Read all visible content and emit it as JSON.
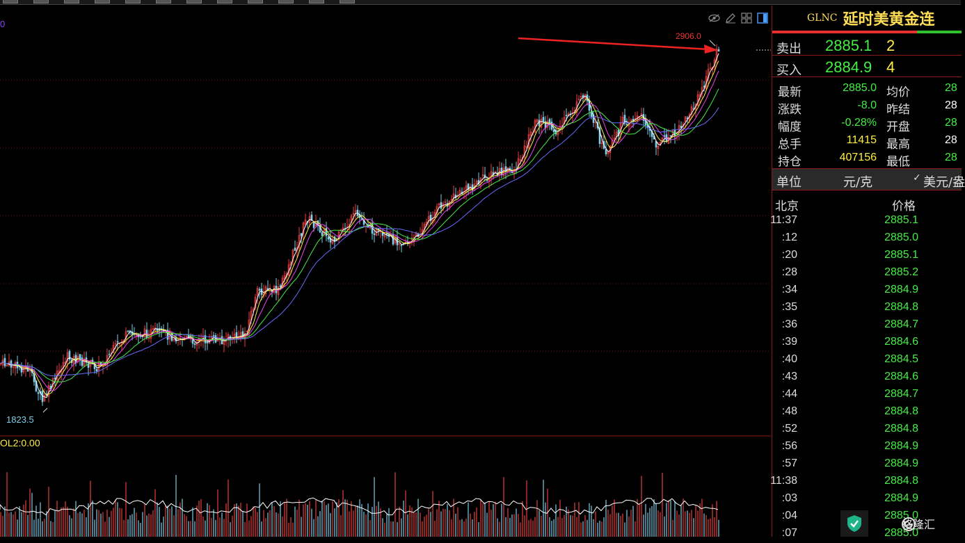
{
  "chart": {
    "top_left_value": "0",
    "peak_label": "2906.0",
    "trough_label": "1823.5",
    "volume_label": "OL2:0.00",
    "colors": {
      "up": "#e84040",
      "down": "#7fd0e8",
      "ma5": "#ffffff",
      "ma10": "#ffee44",
      "ma20": "#ee44ee",
      "ma30": "#44ee44",
      "ma60": "#6a6aff",
      "arrow": "#ee2222",
      "grid": "#6b1010"
    }
  },
  "toolbar": {
    "icons": [
      "eye-off-icon",
      "pencil-icon",
      "grid-layout-icon",
      "panel-toggle-icon"
    ]
  },
  "panel": {
    "code": "GLNC",
    "name": "延时美黄金连",
    "sell": {
      "label": "卖出",
      "price": "2885.1",
      "volume": "2"
    },
    "buy": {
      "label": "买入",
      "price": "2884.9",
      "volume": "4"
    },
    "stats": [
      {
        "l1": "最新",
        "v1": "2885.0",
        "c1": "#44ee44",
        "l2": "均价",
        "v2": "28",
        "c2": "#44ee44"
      },
      {
        "l1": "涨跌",
        "v1": "-8.0",
        "c1": "#44ee44",
        "l2": "昨结",
        "v2": "28",
        "c2": "#ffffff"
      },
      {
        "l1": "幅度",
        "v1": "-0.28%",
        "c1": "#44ee44",
        "l2": "开盘",
        "v2": "28",
        "c2": "#44ee44"
      },
      {
        "l1": "总手",
        "v1": "11415",
        "c1": "#ffee44",
        "l2": "最高",
        "v2": "28",
        "c2": "#ffffff"
      },
      {
        "l1": "持仓",
        "v1": "407156",
        "c1": "#ffee44",
        "l2": "最低",
        "v2": "28",
        "c2": "#44ee44"
      }
    ],
    "unit": {
      "label": "单位",
      "yuan": "元/克",
      "usd": "美元/盎"
    },
    "tick_header": {
      "time": "北京",
      "price": "价格"
    },
    "ticks": [
      {
        "time": "11:37",
        "price": "2885.1"
      },
      {
        "time": ":12",
        "price": "2885.0"
      },
      {
        "time": ":20",
        "price": "2885.1"
      },
      {
        "time": ":28",
        "price": "2885.2"
      },
      {
        "time": ":34",
        "price": "2884.9"
      },
      {
        "time": ":35",
        "price": "2884.8"
      },
      {
        "time": ":36",
        "price": "2884.7"
      },
      {
        "time": ":39",
        "price": "2884.6"
      },
      {
        "time": ":40",
        "price": "2884.5"
      },
      {
        "time": ":43",
        "price": "2884.6"
      },
      {
        "time": ":44",
        "price": "2884.7"
      },
      {
        "time": ":48",
        "price": "2884.8"
      },
      {
        "time": ":52",
        "price": "2884.8"
      },
      {
        "time": ":56",
        "price": "2884.9"
      },
      {
        "time": ":57",
        "price": "2884.9"
      },
      {
        "time": "11:38",
        "price": "2884.8"
      },
      {
        "time": ":03",
        "price": "2884.9"
      },
      {
        "time": ":04",
        "price": "2885.0"
      },
      {
        "time": ":07",
        "price": "2885.0"
      }
    ]
  },
  "brand": {
    "text": "格隆汇"
  }
}
